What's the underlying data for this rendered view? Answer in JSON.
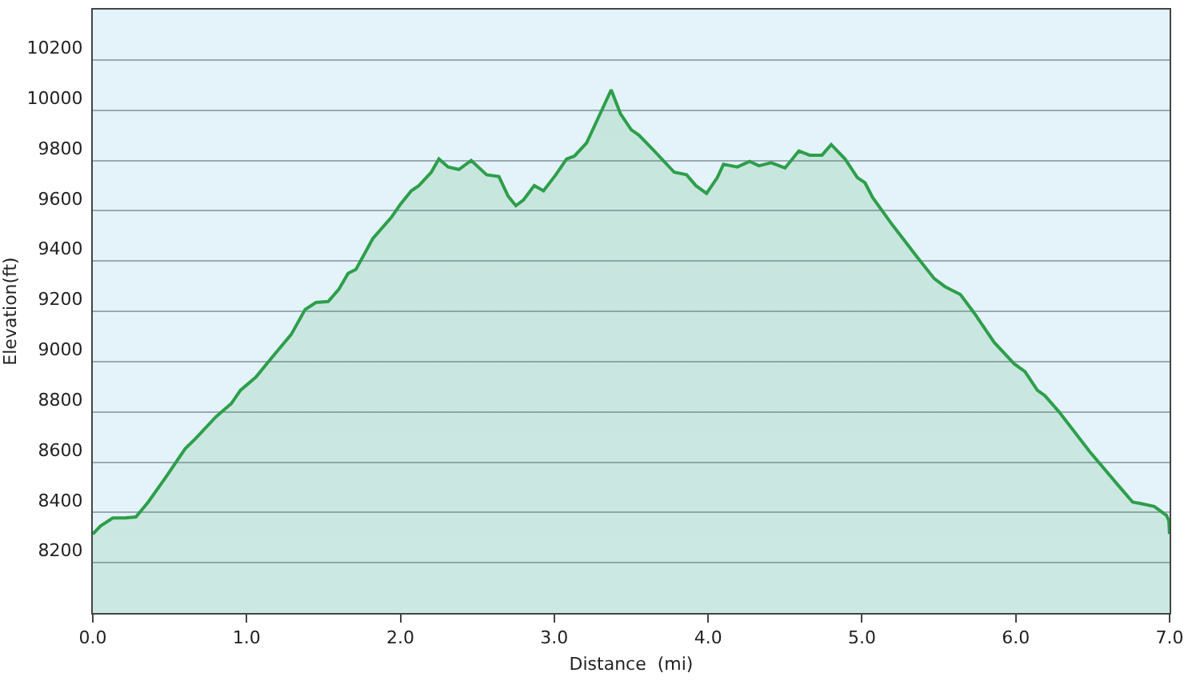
{
  "chart_data": {
    "type": "area",
    "xlabel": "Distance  (mi)",
    "ylabel": "Elevation(ft)",
    "xlim": [
      0,
      7.0
    ],
    "ylim": [
      8000,
      10400
    ],
    "xticks": [
      {
        "value": 0,
        "label": "0.0"
      },
      {
        "value": 1,
        "label": "1.0"
      },
      {
        "value": 2,
        "label": "2.0"
      },
      {
        "value": 3,
        "label": "3.0"
      },
      {
        "value": 4,
        "label": "4.0"
      },
      {
        "value": 5,
        "label": "5.0"
      },
      {
        "value": 6,
        "label": "6.0"
      },
      {
        "value": 7,
        "label": "7.0"
      }
    ],
    "yticks": [
      8200,
      8400,
      8600,
      8800,
      9000,
      9200,
      9400,
      9600,
      9800,
      10000,
      10200
    ],
    "grid": "y",
    "x": [
      0,
      0.05,
      0.13,
      0.21,
      0.28,
      0.36,
      0.47,
      0.6,
      0.67,
      0.8,
      0.9,
      0.96,
      1.06,
      1.16,
      1.29,
      1.38,
      1.45,
      1.53,
      1.6,
      1.66,
      1.71,
      1.82,
      1.94,
      2.0,
      2.07,
      2.12,
      2.2,
      2.25,
      2.31,
      2.38,
      2.46,
      2.56,
      2.64,
      2.7,
      2.75,
      2.8,
      2.87,
      2.93,
      3.01,
      3.08,
      3.13,
      3.21,
      3.29,
      3.37,
      3.43,
      3.5,
      3.55,
      3.65,
      3.78,
      3.86,
      3.92,
      3.99,
      4.06,
      4.1,
      4.19,
      4.27,
      4.33,
      4.41,
      4.5,
      4.59,
      4.66,
      4.74,
      4.8,
      4.89,
      4.97,
      5.02,
      5.07,
      5.2,
      5.36,
      5.47,
      5.54,
      5.64,
      5.73,
      5.86,
      5.99,
      6.06,
      6.14,
      6.19,
      6.28,
      6.48,
      6.67,
      6.76,
      6.8,
      6.9,
      6.98,
      6.995,
      7.0
    ],
    "series": [
      {
        "color": "#2e9e4a",
        "values": [
          8314,
          8346,
          8378,
          8378,
          8382,
          8441,
          8536,
          8653,
          8695,
          8780,
          8833,
          8886,
          8938,
          9013,
          9108,
          9207,
          9235,
          9239,
          9288,
          9351,
          9366,
          9489,
          9573,
          9626,
          9679,
          9700,
          9753,
          9806,
          9774,
          9764,
          9800,
          9743,
          9736,
          9658,
          9620,
          9643,
          9700,
          9679,
          9743,
          9806,
          9817,
          9870,
          9975,
          10081,
          9986,
          9922,
          9901,
          9838,
          9753,
          9743,
          9700,
          9669,
          9732,
          9785,
          9774,
          9796,
          9779,
          9791,
          9770,
          9838,
          9821,
          9821,
          9863,
          9806,
          9732,
          9711,
          9652,
          9542,
          9415,
          9330,
          9298,
          9267,
          9193,
          9076,
          8991,
          8960,
          8886,
          8864,
          8801,
          8642,
          8505,
          8441,
          8437,
          8424,
          8388,
          8367,
          8314
        ]
      }
    ]
  }
}
